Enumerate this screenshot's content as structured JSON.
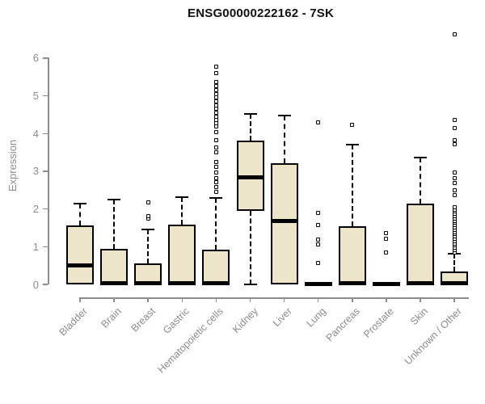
{
  "page": {
    "title": "ENSG00000222162 - 7SK"
  },
  "chart_data": {
    "type": "box",
    "title": "ENSG00000222162 - 7SK",
    "xlabel": "",
    "ylabel": "Expression",
    "ylim": [
      0,
      6.8
    ],
    "yticks": [
      0,
      1,
      2,
      3,
      4,
      5,
      6
    ],
    "grid": false,
    "legend": "none",
    "colors": {
      "box_fill": "#ece5ca",
      "box_border": "#000000",
      "median": "#000000",
      "whisker": "#000000",
      "axis": "#8c8c8c",
      "labels": "#8c8c8c",
      "title": "#111111"
    },
    "categories": [
      "Bladder",
      "Brain",
      "Breast",
      "Gastric",
      "Hematopoietic cells",
      "Kidney",
      "Liver",
      "Lung",
      "Pancreas",
      "Prostate",
      "Skin",
      "Unknown / Other"
    ],
    "series": [
      {
        "name": "Bladder",
        "q1": 0,
        "median": 0.5,
        "q3": 1.57,
        "whisker_low": 0,
        "whisker_high": 2.14,
        "outliers": []
      },
      {
        "name": "Brain",
        "q1": 0,
        "median": 0.04,
        "q3": 0.95,
        "whisker_low": 0,
        "whisker_high": 2.25,
        "outliers": []
      },
      {
        "name": "Breast",
        "q1": 0,
        "median": 0.04,
        "q3": 0.55,
        "whisker_low": 0,
        "whisker_high": 1.46,
        "outliers": [
          1.75,
          1.82,
          2.18
        ]
      },
      {
        "name": "Gastric",
        "q1": 0,
        "median": 0.04,
        "q3": 1.59,
        "whisker_low": 0,
        "whisker_high": 2.32,
        "outliers": []
      },
      {
        "name": "Hematopoietic cells",
        "q1": 0,
        "median": 0.04,
        "q3": 0.92,
        "whisker_low": 0,
        "whisker_high": 2.29,
        "outliers": [
          2.46,
          2.58,
          2.71,
          2.82,
          2.97,
          3.11,
          3.25,
          3.5,
          3.64,
          3.82,
          4.04,
          4.18,
          4.27,
          4.35,
          4.45,
          4.55,
          4.65,
          4.75,
          4.85,
          4.95,
          5.05,
          5.15,
          5.25,
          5.36,
          5.61,
          5.78
        ]
      },
      {
        "name": "Kidney",
        "q1": 1.96,
        "median": 2.84,
        "q3": 3.82,
        "whisker_low": 0,
        "whisker_high": 4.52,
        "outliers": []
      },
      {
        "name": "Liver",
        "q1": 0,
        "median": 1.68,
        "q3": 3.21,
        "whisker_low": 0,
        "whisker_high": 4.47,
        "outliers": []
      },
      {
        "name": "Lung",
        "q1": 0,
        "median": 0.02,
        "q3": 0.04,
        "whisker_low": 0,
        "whisker_high": 0.04,
        "outliers": [
          0.57,
          1.07,
          1.18,
          1.57,
          1.89,
          4.29
        ]
      },
      {
        "name": "Pancreas",
        "q1": 0,
        "median": 0.04,
        "q3": 1.54,
        "whisker_low": 0,
        "whisker_high": 3.7,
        "outliers": [
          4.24
        ]
      },
      {
        "name": "Prostate",
        "q1": 0,
        "median": 0.02,
        "q3": 0.04,
        "whisker_low": 0,
        "whisker_high": 0.04,
        "outliers": [
          0.84,
          1.21,
          1.36
        ]
      },
      {
        "name": "Skin",
        "q1": 0,
        "median": 0.04,
        "q3": 2.14,
        "whisker_low": 0,
        "whisker_high": 3.36,
        "outliers": []
      },
      {
        "name": "Unknown / Other",
        "q1": 0,
        "median": 0.04,
        "q3": 0.35,
        "whisker_low": 0,
        "whisker_high": 0.81,
        "outliers": [
          0.85,
          0.91,
          0.97,
          1.03,
          1.09,
          1.15,
          1.21,
          1.27,
          1.33,
          1.39,
          1.45,
          1.51,
          1.57,
          1.63,
          1.69,
          1.75,
          1.81,
          1.87,
          1.93,
          1.99,
          2.05,
          2.36,
          2.5,
          2.68,
          2.82,
          2.97,
          3.72,
          3.82,
          4.14,
          4.36,
          6.64
        ]
      }
    ]
  }
}
